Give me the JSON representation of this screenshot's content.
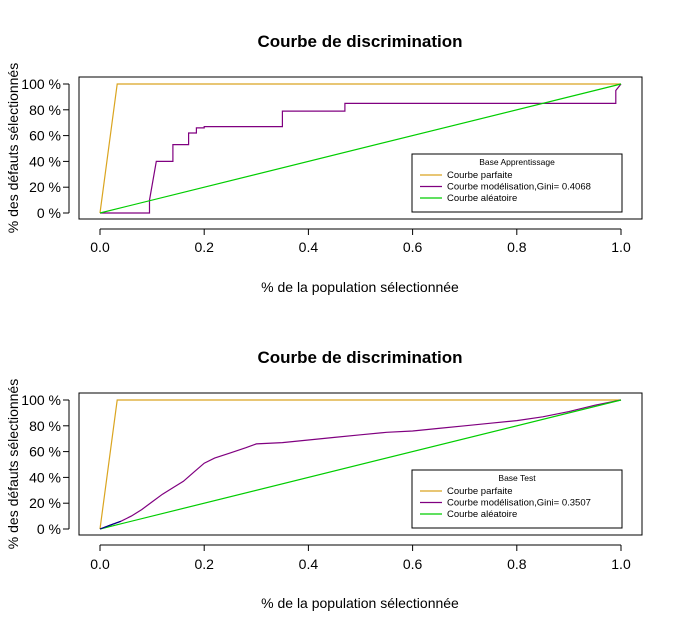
{
  "colors": {
    "parfaite": "#DAA520",
    "modelisation": "#800080",
    "aleatoire": "#00CD00",
    "modelisation_test_start": "#00008B"
  },
  "chart_data": [
    {
      "type": "line",
      "title": "Courbe de discrimination",
      "xlabel": "% de la population sélectionnée",
      "ylabel": "% des défauts sélectionnés",
      "xlim": [
        0,
        1
      ],
      "ylim": [
        0,
        1
      ],
      "xticks": [
        "0.0",
        "0.2",
        "0.4",
        "0.6",
        "0.8",
        "1.0"
      ],
      "yticks": [
        "0 %",
        "20 %",
        "40 %",
        "60 %",
        "80 %",
        "100 %"
      ],
      "legend": {
        "title": "Base Apprentissage",
        "position": "bottom-right",
        "entries": [
          "Courbe parfaite",
          "Courbe modélisation,Gini= 0.4068",
          "Courbe aléatoire"
        ]
      },
      "series": [
        {
          "name": "Courbe parfaite",
          "color": "parfaite",
          "x": [
            0,
            0.033,
            1
          ],
          "y": [
            0,
            1,
            1
          ]
        },
        {
          "name": "Courbe modélisation,Gini= 0.4068",
          "color": "modelisation",
          "x": [
            0,
            0.095,
            0.095,
            0.108,
            0.108,
            0.14,
            0.14,
            0.17,
            0.17,
            0.185,
            0.185,
            0.2,
            0.2,
            0.35,
            0.35,
            0.47,
            0.47,
            0.99,
            0.99,
            1.0
          ],
          "y": [
            0,
            0,
            0.1,
            0.4,
            0.4,
            0.4,
            0.53,
            0.53,
            0.62,
            0.62,
            0.66,
            0.66,
            0.67,
            0.67,
            0.79,
            0.79,
            0.85,
            0.85,
            0.95,
            1.0
          ]
        },
        {
          "name": "Courbe aléatoire",
          "color": "aleatoire",
          "x": [
            0,
            1
          ],
          "y": [
            0,
            1
          ]
        }
      ]
    },
    {
      "type": "line",
      "title": "Courbe de discrimination",
      "xlabel": "% de la population sélectionnée",
      "ylabel": "% des défauts sélectionnés",
      "xlim": [
        0,
        1
      ],
      "ylim": [
        0,
        1
      ],
      "xticks": [
        "0.0",
        "0.2",
        "0.4",
        "0.6",
        "0.8",
        "1.0"
      ],
      "yticks": [
        "0 %",
        "20 %",
        "40 %",
        "60 %",
        "80 %",
        "100 %"
      ],
      "legend": {
        "title": "Base Test",
        "position": "bottom-right",
        "entries": [
          "Courbe parfaite",
          "Courbe modélisation,Gini= 0.3507",
          "Courbe aléatoire"
        ]
      },
      "series": [
        {
          "name": "Courbe parfaite",
          "color": "parfaite",
          "x": [
            0,
            0.033,
            1
          ],
          "y": [
            0,
            1,
            1
          ]
        },
        {
          "name": "Courbe modélisation,Gini= 0.3507",
          "color": "modelisation",
          "x": [
            0,
            0.02,
            0.04,
            0.06,
            0.08,
            0.1,
            0.12,
            0.14,
            0.16,
            0.18,
            0.2,
            0.22,
            0.25,
            0.28,
            0.3,
            0.35,
            0.4,
            0.45,
            0.5,
            0.55,
            0.6,
            0.65,
            0.7,
            0.75,
            0.8,
            0.85,
            0.9,
            0.95,
            1.0
          ],
          "y": [
            0,
            0.03,
            0.06,
            0.1,
            0.15,
            0.21,
            0.27,
            0.32,
            0.37,
            0.44,
            0.51,
            0.55,
            0.59,
            0.63,
            0.66,
            0.67,
            0.69,
            0.71,
            0.73,
            0.75,
            0.76,
            0.78,
            0.8,
            0.82,
            0.84,
            0.87,
            0.91,
            0.96,
            1.0
          ]
        },
        {
          "name": "Courbe aléatoire",
          "color": "aleatoire",
          "x": [
            0,
            1
          ],
          "y": [
            0,
            1
          ]
        }
      ]
    }
  ]
}
